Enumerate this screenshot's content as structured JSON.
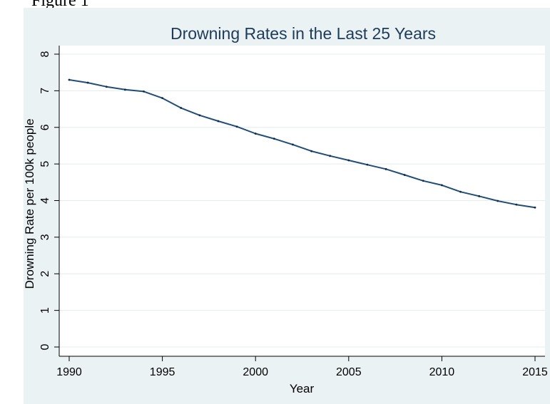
{
  "figure_label": "Figure 1",
  "chart_data": {
    "type": "line",
    "title": "Drowning Rates in the Last 25 Years",
    "xlabel": "Year",
    "ylabel": "Drowning Rate per 100k people",
    "xlim": [
      1990,
      2015
    ],
    "ylim": [
      0,
      8
    ],
    "x_ticks": [
      1990,
      1995,
      2000,
      2005,
      2010,
      2015
    ],
    "y_ticks": [
      0,
      1,
      2,
      3,
      4,
      5,
      6,
      7,
      8
    ],
    "grid": true,
    "legend": "none",
    "colors": {
      "line": "#1f4e79",
      "background": "#eaf2f3",
      "plot_area": "#ffffff",
      "grid": "#e4ecee",
      "title": "#1e3b5a"
    },
    "series": [
      {
        "x": [
          1990,
          1991,
          1992,
          1993,
          1994,
          1995,
          1996,
          1997,
          1998,
          1999,
          2000,
          2001,
          2002,
          2003,
          2004,
          2005,
          2006,
          2007,
          2008,
          2009,
          2010,
          2011,
          2012,
          2013,
          2014,
          2015
        ],
        "values": [
          7.3,
          7.22,
          7.11,
          7.03,
          6.98,
          6.8,
          6.53,
          6.33,
          6.17,
          6.02,
          5.83,
          5.69,
          5.53,
          5.35,
          5.22,
          5.1,
          4.98,
          4.86,
          4.7,
          4.54,
          4.42,
          4.24,
          4.12,
          3.99,
          3.89,
          3.81
        ]
      }
    ]
  }
}
